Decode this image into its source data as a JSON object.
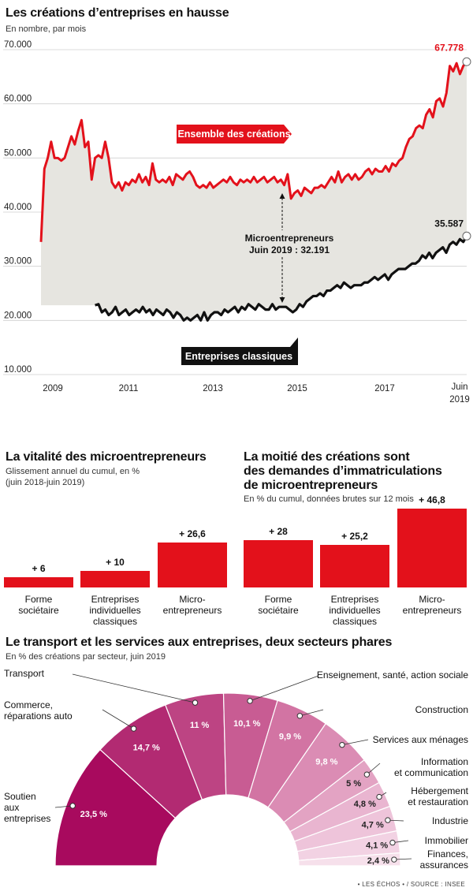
{
  "source": "• LES ÉCHOS • / SOURCE : INSEE",
  "colors": {
    "red": "#e3111b",
    "black": "#111111",
    "fill": "#e6e5e0"
  },
  "chart_data": [
    {
      "type": "line",
      "title": "Les créations d’entreprises en hausse",
      "subtitle": "En nombre, par mois",
      "y_ticks": [
        "70.000",
        "60.000",
        "50.000",
        "40.000",
        "30.000",
        "20.000",
        "10.000"
      ],
      "x_ticks": [
        "2009",
        "2011",
        "2013",
        "2015",
        "2017",
        "Juin",
        "2019"
      ],
      "ylim": [
        10000,
        70000
      ],
      "x_start": "2009-01",
      "x_end": "2019-06",
      "grid": "horizontal",
      "series": [
        {
          "name": "Ensemble des créations",
          "color": "#e3111b",
          "end_label": "67.778",
          "values": [
            34500,
            48000,
            50000,
            53000,
            50000,
            50000,
            49500,
            50000,
            52000,
            54000,
            52500,
            55000,
            57000,
            52000,
            53000,
            46000,
            50000,
            50500,
            50000,
            53000,
            50000,
            45500,
            44500,
            45500,
            44000,
            45500,
            45000,
            46000,
            45500,
            47000,
            45500,
            46500,
            45000,
            49000,
            46000,
            45500,
            46000,
            45500,
            46500,
            45000,
            47000,
            46500,
            46000,
            47000,
            47500,
            46500,
            45000,
            44500,
            45000,
            44500,
            45500,
            44500,
            45000,
            45500,
            46000,
            45500,
            46500,
            45500,
            45000,
            46000,
            45500,
            46000,
            45500,
            46500,
            45500,
            46000,
            46500,
            45500,
            46000,
            46500,
            45500,
            46000,
            45000,
            47000,
            42500,
            43500,
            44000,
            43000,
            44500,
            44000,
            43500,
            44500,
            44500,
            45000,
            44500,
            45500,
            46500,
            45500,
            47500,
            45500,
            46500,
            47000,
            46000,
            47000,
            46000,
            46500,
            47500,
            48000,
            47000,
            48000,
            47500,
            47500,
            48500,
            47500,
            49000,
            48500,
            49500,
            50000,
            52000,
            53500,
            54000,
            55500,
            56000,
            55500,
            58000,
            59000,
            57500,
            60500,
            61000,
            59500,
            62000,
            67000,
            66000,
            67500,
            65500,
            67000,
            67778
          ]
        },
        {
          "name": "Entreprises classiques",
          "color": "#111111",
          "end_label": "35.587",
          "values": [
            22800,
            23000,
            21500,
            22000,
            21000,
            21500,
            22500,
            21000,
            21500,
            22000,
            21000,
            21500,
            22000,
            21500,
            22500,
            21500,
            22000,
            21000,
            22000,
            21500,
            21000,
            22000,
            21500,
            20500,
            21500,
            21000,
            20000,
            20500,
            20000,
            20500,
            21000,
            20000,
            21500,
            20000,
            21000,
            21500,
            21500,
            21000,
            22000,
            21500,
            22000,
            22500,
            21500,
            22500,
            22000,
            23000,
            22500,
            22000,
            23000,
            22500,
            22000,
            22000,
            23000,
            22000,
            22500,
            22500,
            22500,
            22000,
            21500,
            22000,
            23000,
            22500,
            23500,
            24000,
            24500,
            24500,
            25000,
            24500,
            25500,
            25500,
            26000,
            26500,
            26000,
            27000,
            26500,
            26000,
            26500,
            26500,
            26500,
            27000,
            27000,
            27500,
            28000,
            27500,
            28000,
            28500,
            27500,
            28500,
            29000,
            29500,
            29500,
            29500,
            30000,
            30500,
            30500,
            31000,
            32000,
            31500,
            32500,
            31500,
            32500,
            33000,
            33500,
            32500,
            34000,
            34500,
            34000,
            35000,
            34500,
            35587
          ],
          "x_offset_months": 16
        }
      ],
      "annotations": [
        {
          "text_line1": "Microentrepreneurs",
          "text_line2": "Juin 2019 : 32.191"
        }
      ]
    },
    {
      "type": "bar",
      "title": "La vitalité des microentrepreneurs",
      "subtitle_line1": "Glissement annuel du cumul, en %",
      "subtitle_line2": "(juin 2018-juin 2019)",
      "categories": [
        [
          "Forme",
          "sociétaire"
        ],
        [
          "Entreprises",
          "individuelles",
          "classiques"
        ],
        [
          "Micro-",
          "entrepreneurs"
        ]
      ],
      "values": [
        6,
        10,
        26.6
      ],
      "labels": [
        "+ 6",
        "+ 10",
        "+ 26,6"
      ]
    },
    {
      "type": "bar",
      "title_line1": "La moitié des créations sont",
      "title_line2": "des demandes d’immatriculations",
      "title_line3": "de microentrepreneurs",
      "subtitle": "En % du cumul, données brutes sur 12 mois",
      "categories": [
        [
          "Forme",
          "sociétaire"
        ],
        [
          "Entreprises",
          "individuelles",
          "classiques"
        ],
        [
          "Micro-",
          "entrepreneurs"
        ]
      ],
      "values": [
        28,
        25.2,
        46.8
      ],
      "labels": [
        "+ 28",
        "+ 25,2",
        "+ 46,8"
      ]
    },
    {
      "type": "pie",
      "title": "Le transport et les services aux entreprises, deux secteurs phares",
      "subtitle": "En % des créations par secteur, juin 2019",
      "slices": [
        {
          "label": [
            "Soutien",
            "aux",
            "entreprises"
          ],
          "value": 23.5,
          "pct": "23,5 %",
          "color": "#a80a5e"
        },
        {
          "label": [
            "Commerce,",
            "réparations auto"
          ],
          "value": 14.7,
          "pct": "14,7 %",
          "color": "#b22a72"
        },
        {
          "label": [
            "Transport"
          ],
          "value": 11,
          "pct": "11 %",
          "color": "#bd4483"
        },
        {
          "label": [
            "Enseignement, santé, action sociale"
          ],
          "value": 10.1,
          "pct": "10,1 %",
          "color": "#c85c93"
        },
        {
          "label": [
            "Construction"
          ],
          "value": 9.9,
          "pct": "9,9 %",
          "color": "#d274a3"
        },
        {
          "label": [
            "Services aux ménages"
          ],
          "value": 9.8,
          "pct": "9,8 %",
          "color": "#db8cb4"
        },
        {
          "label": [
            "Information",
            "et communication"
          ],
          "value": 5,
          "pct": "5 %",
          "color": "#e3a3c3"
        },
        {
          "label": [
            "Hébergement",
            "et restauration"
          ],
          "value": 4.8,
          "pct": "4,8 %",
          "color": "#e9b5d0"
        },
        {
          "label": [
            "Industrie"
          ],
          "value": 4.7,
          "pct": "4,7 %",
          "color": "#eec4da"
        },
        {
          "label": [
            "Immobilier"
          ],
          "value": 4.1,
          "pct": "4,1 %",
          "color": "#f2d2e3"
        },
        {
          "label": [
            "Finances,",
            "assurances"
          ],
          "value": 2.4,
          "pct": "2,4 %",
          "color": "#f6e0eb"
        }
      ]
    }
  ]
}
